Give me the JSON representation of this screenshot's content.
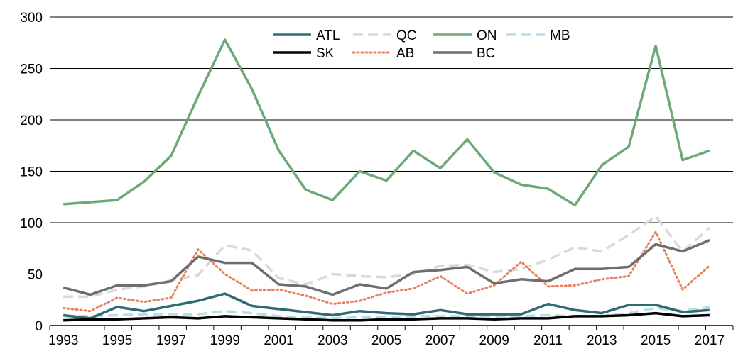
{
  "chart_data": {
    "type": "line",
    "title": "",
    "xlabel": "",
    "ylabel": "",
    "x": [
      1993,
      1994,
      1995,
      1996,
      1997,
      1998,
      1999,
      2000,
      2001,
      2002,
      2003,
      2004,
      2005,
      2006,
      2007,
      2008,
      2009,
      2010,
      2011,
      2012,
      2013,
      2014,
      2015,
      2016,
      2017
    ],
    "xtick_labels": [
      "1993",
      "1995",
      "1997",
      "1999",
      "2001",
      "2003",
      "2005",
      "2007",
      "2009",
      "2011",
      "2013",
      "2015",
      "2017"
    ],
    "ylim": [
      0,
      300
    ],
    "ytick_labels": [
      "0",
      "50",
      "100",
      "150",
      "200",
      "250",
      "300"
    ],
    "grid": "horizontal",
    "legend_position": "top-center",
    "series": [
      {
        "name": "ATL",
        "color": "#2E6B77",
        "style": "solid",
        "values": [
          10,
          7,
          18,
          14,
          19,
          24,
          31,
          19,
          16,
          13,
          10,
          14,
          12,
          11,
          15,
          11,
          11,
          11,
          21,
          15,
          12,
          20,
          20,
          13,
          15
        ]
      },
      {
        "name": "QC",
        "color": "#D9D9D9",
        "style": "dashed",
        "values": [
          28,
          28,
          35,
          38,
          44,
          49,
          78,
          73,
          46,
          40,
          50,
          48,
          47,
          50,
          58,
          59,
          52,
          55,
          64,
          76,
          72,
          88,
          106,
          72,
          95
        ]
      },
      {
        "name": "ON",
        "color": "#6FA877",
        "style": "solid",
        "values": [
          118,
          120,
          122,
          140,
          165,
          223,
          278,
          230,
          170,
          132,
          122,
          150,
          141,
          170,
          153,
          181,
          149,
          137,
          133,
          117,
          156,
          174,
          272,
          161,
          170
        ]
      },
      {
        "name": "MB",
        "color": "#B7DDE8",
        "style": "dashed",
        "values": [
          9,
          9,
          10,
          11,
          11,
          11,
          14,
          12,
          9,
          8,
          7,
          8,
          8,
          9,
          9,
          9,
          8,
          9,
          10,
          9,
          9,
          12,
          17,
          14,
          18
        ]
      },
      {
        "name": "SK",
        "color": "#000000",
        "style": "solid",
        "values": [
          5,
          6,
          6,
          7,
          8,
          7,
          9,
          8,
          7,
          6,
          5,
          5,
          6,
          6,
          7,
          7,
          6,
          7,
          7,
          9,
          9,
          10,
          12,
          9,
          10
        ]
      },
      {
        "name": "AB",
        "color": "#E8805E",
        "style": "dotted",
        "values": [
          17,
          14,
          27,
          23,
          27,
          74,
          50,
          34,
          35,
          29,
          21,
          24,
          32,
          36,
          48,
          31,
          39,
          62,
          38,
          39,
          45,
          48,
          91,
          35,
          58
        ]
      },
      {
        "name": "BC",
        "color": "#6E6E6E",
        "style": "solid",
        "values": [
          37,
          30,
          39,
          39,
          43,
          67,
          61,
          61,
          40,
          38,
          30,
          40,
          36,
          52,
          54,
          57,
          41,
          45,
          43,
          55,
          55,
          57,
          79,
          72,
          83
        ]
      }
    ]
  }
}
